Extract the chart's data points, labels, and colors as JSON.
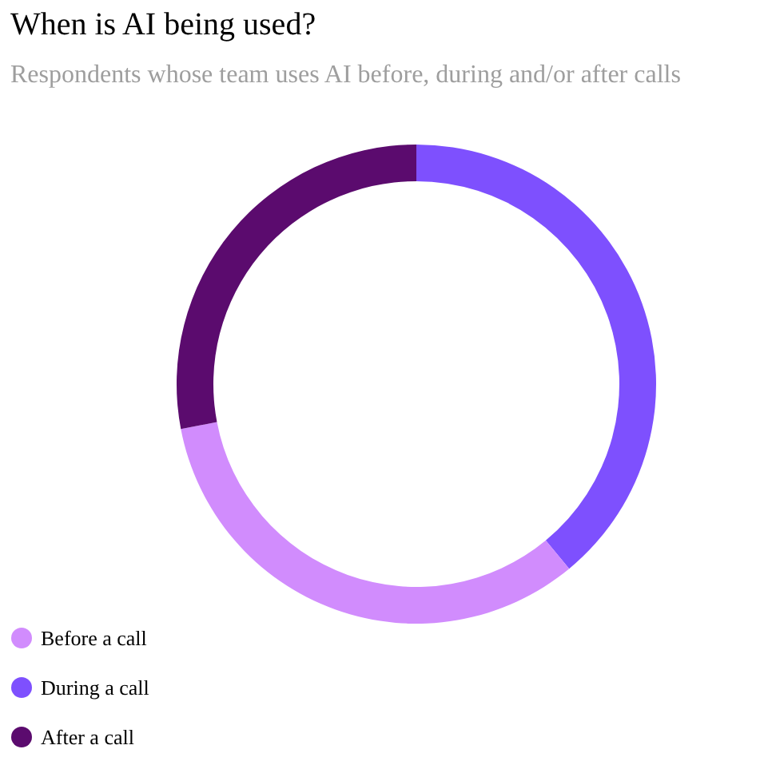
{
  "chart_data": {
    "type": "donut",
    "title": "When is AI being used?",
    "subtitle": "Respondents whose team uses AI before, during and/or after calls",
    "categories": [
      "Before a call",
      "During a call",
      "After a call"
    ],
    "values": [
      33,
      39,
      28
    ],
    "colors": [
      "#d18cfd",
      "#7e50fe",
      "#5b0b6e"
    ],
    "legend": "bottom left"
  }
}
